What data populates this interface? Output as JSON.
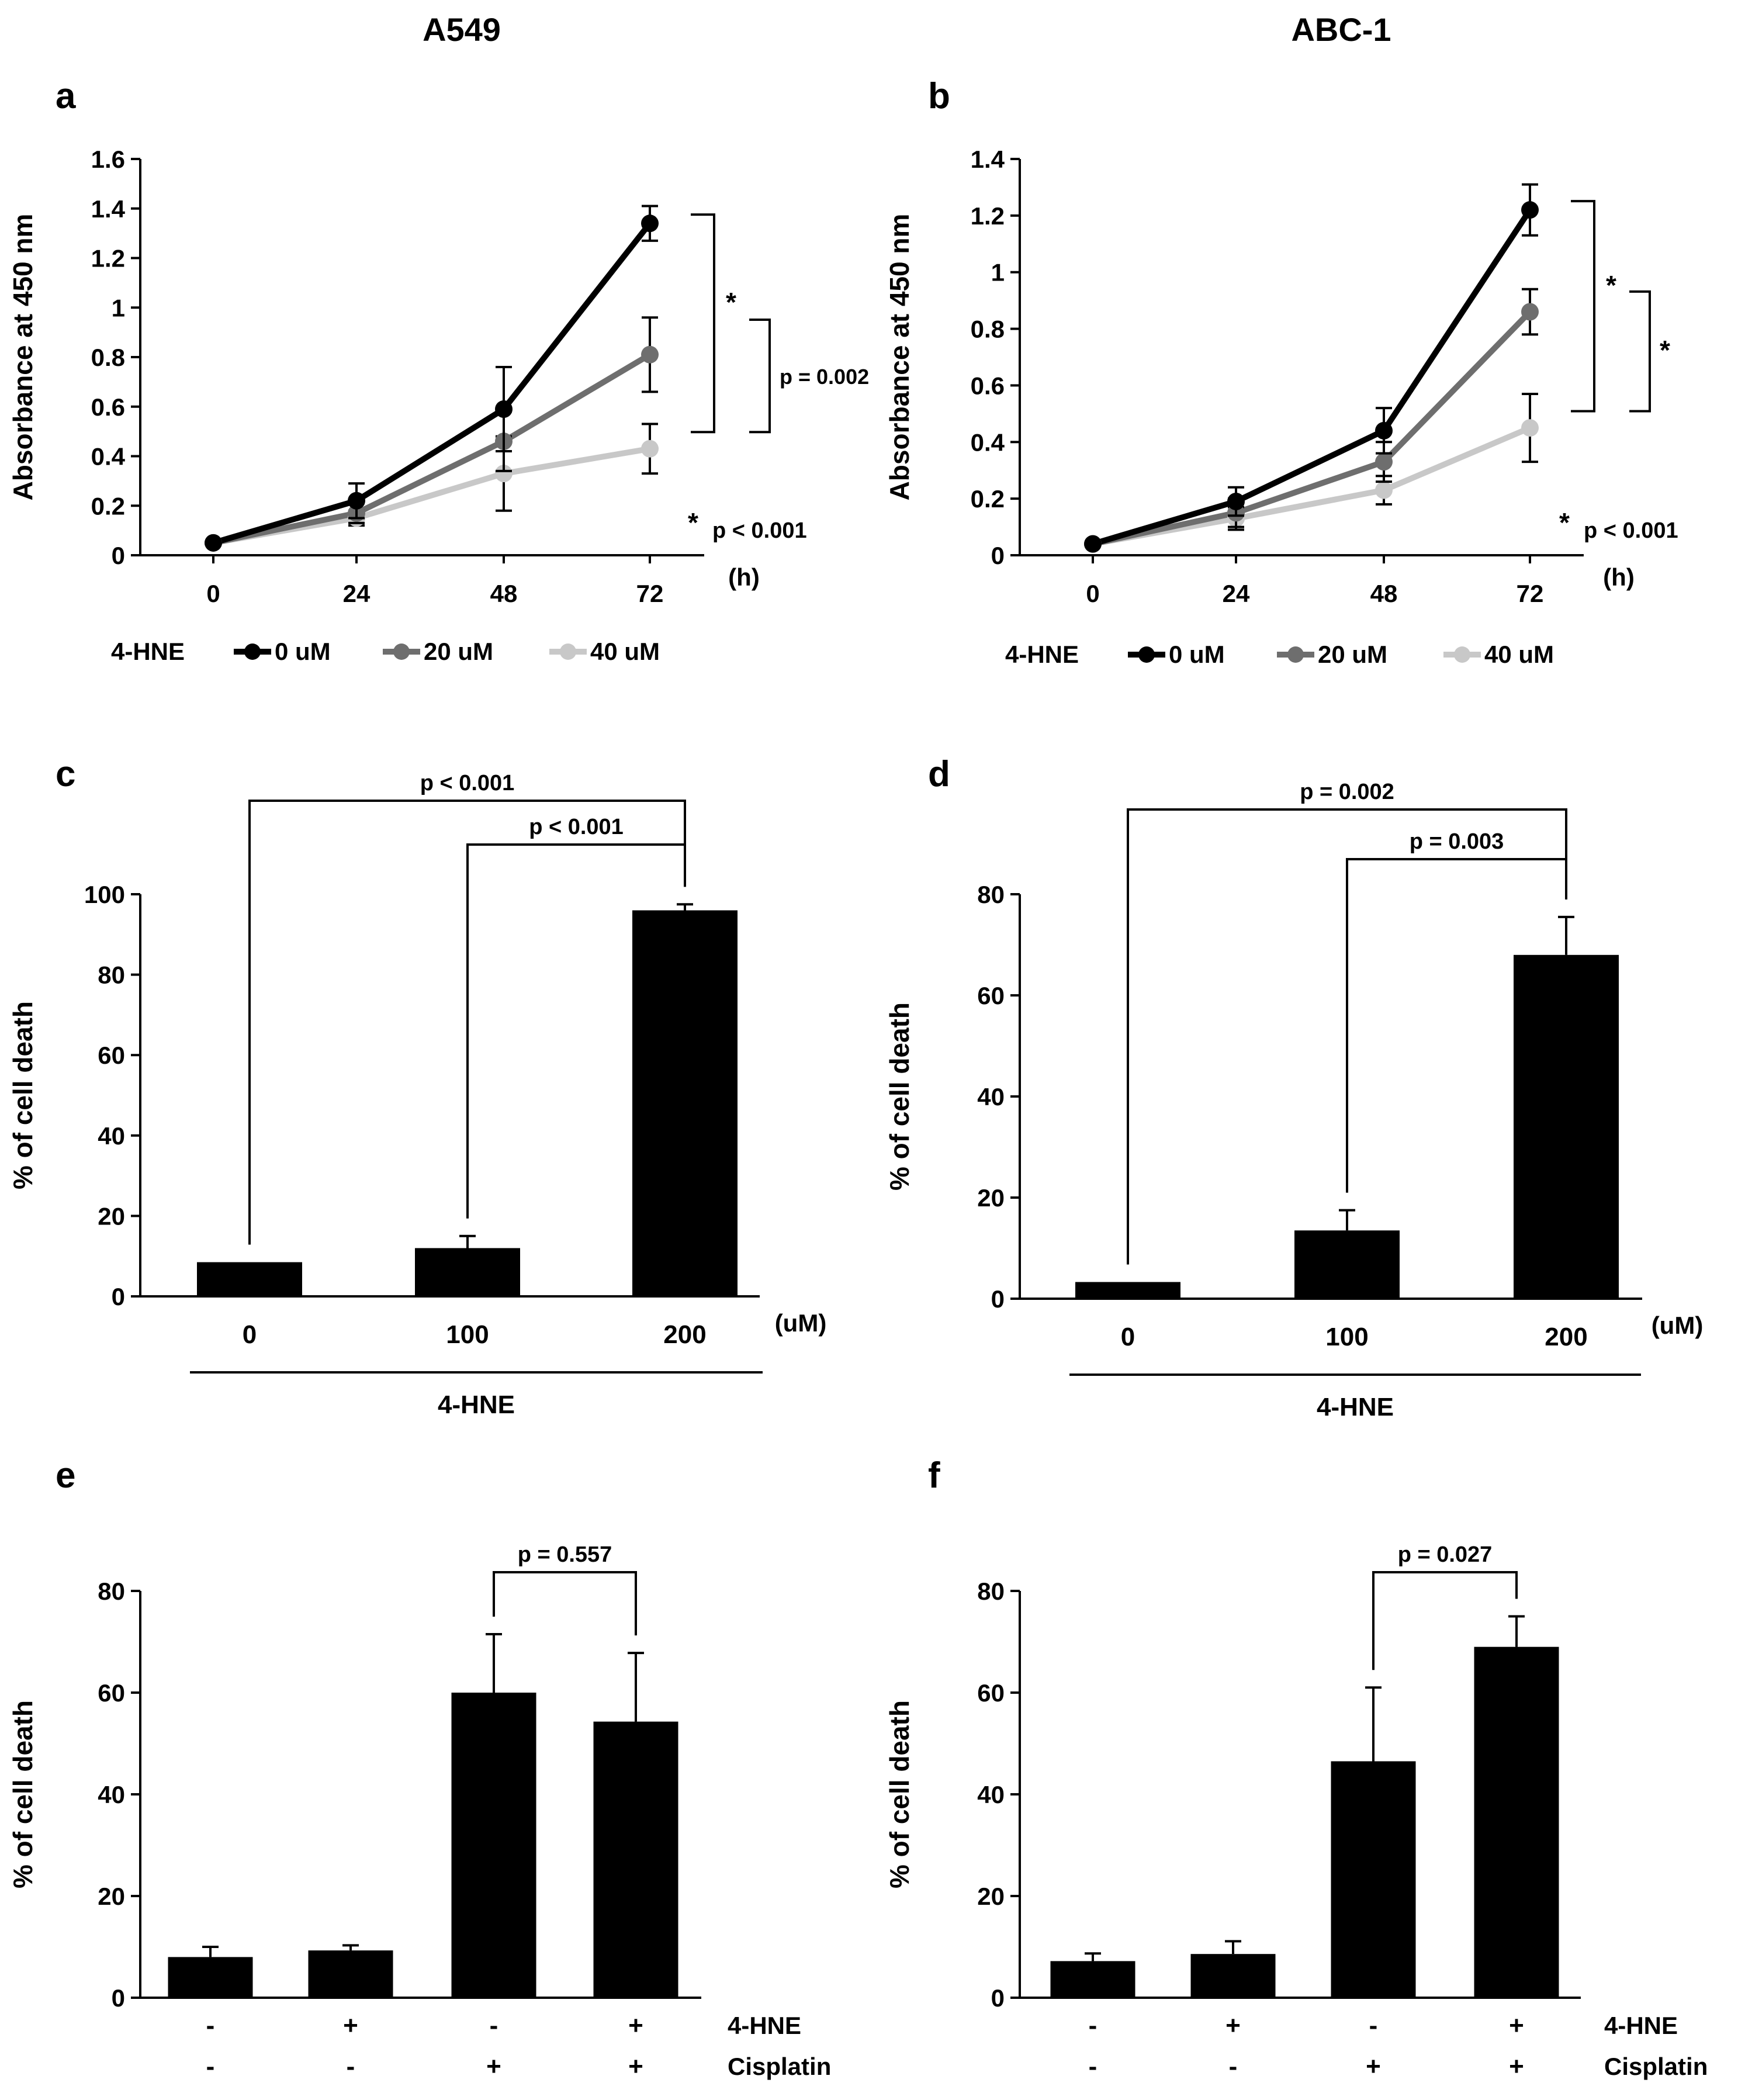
{
  "columns": [
    "A549",
    "ABC-1"
  ],
  "colors": {
    "black": "#000000",
    "s0": "#000000",
    "s20": "#6e6e6e",
    "s40": "#c8c8c8"
  },
  "chart_data": [
    {
      "id": "a",
      "panel_label": "a",
      "column": "A549",
      "type": "line",
      "ylabel": "Absorbance at 450 nm",
      "x_unit": "(h)",
      "x": [
        0,
        24,
        48,
        72
      ],
      "ylim": [
        0,
        1.6
      ],
      "yticks": [
        0,
        0.2,
        0.4,
        0.6,
        0.8,
        1,
        1.2,
        1.4,
        1.6
      ],
      "legend": {
        "title": "4-HNE",
        "placement": "bottom"
      },
      "series": [
        {
          "name": "0 uM",
          "values": [
            0.05,
            0.22,
            0.59,
            1.34
          ],
          "err": [
            0,
            0.07,
            0.17,
            0.07
          ]
        },
        {
          "name": "20 uM",
          "values": [
            0.05,
            0.17,
            0.46,
            0.81
          ],
          "err": [
            0,
            0.04,
            0.12,
            0.15
          ]
        },
        {
          "name": "40 uM",
          "values": [
            0.05,
            0.15,
            0.33,
            0.43
          ],
          "err": [
            0,
            0.03,
            0.15,
            0.1
          ]
        }
      ],
      "annotations": {
        "outer_star": "*",
        "inner_label": "p = 0.002",
        "footnote_star": "*",
        "footnote_label": "p < 0.001"
      }
    },
    {
      "id": "b",
      "panel_label": "b",
      "column": "ABC-1",
      "type": "line",
      "ylabel": "Absorbance at 450 nm",
      "x_unit": "(h)",
      "x": [
        0,
        24,
        48,
        72
      ],
      "ylim": [
        0,
        1.4
      ],
      "yticks": [
        0,
        0.2,
        0.4,
        0.6,
        0.8,
        1,
        1.2,
        1.4
      ],
      "legend": {
        "title": "4-HNE",
        "placement": "bottom"
      },
      "series": [
        {
          "name": "0 uM",
          "values": [
            0.04,
            0.19,
            0.44,
            1.22
          ],
          "err": [
            0,
            0.05,
            0.08,
            0.09
          ]
        },
        {
          "name": "20 uM",
          "values": [
            0.04,
            0.15,
            0.33,
            0.86
          ],
          "err": [
            0,
            0.05,
            0.07,
            0.08
          ]
        },
        {
          "name": "40 uM",
          "values": [
            0.04,
            0.13,
            0.23,
            0.45
          ],
          "err": [
            0,
            0.04,
            0.05,
            0.12
          ]
        }
      ],
      "annotations": {
        "outer_star": "*",
        "inner_label": "*",
        "footnote_star": "*",
        "footnote_label": "p < 0.001"
      }
    },
    {
      "id": "c",
      "panel_label": "c",
      "column": "A549",
      "type": "bar",
      "ylabel": "% of cell death",
      "x_unit": "(uM)",
      "group_label": "4-HNE",
      "categories": [
        "0",
        "100",
        "200"
      ],
      "values": [
        8.5,
        12,
        96
      ],
      "err": [
        0,
        3,
        1.5
      ],
      "ylim": [
        0,
        100
      ],
      "yticks": [
        0,
        20,
        40,
        60,
        80,
        100
      ],
      "comparisons": [
        {
          "from": 0,
          "to": 2,
          "label": "p < 0.001"
        },
        {
          "from": 1,
          "to": 2,
          "label": "p < 0.001"
        }
      ]
    },
    {
      "id": "d",
      "panel_label": "d",
      "column": "ABC-1",
      "type": "bar",
      "ylabel": "% of cell death",
      "x_unit": "(uM)",
      "group_label": "4-HNE",
      "categories": [
        "0",
        "100",
        "200"
      ],
      "values": [
        3.3,
        13.5,
        68
      ],
      "err": [
        0,
        4,
        7.5
      ],
      "ylim": [
        0,
        80
      ],
      "yticks": [
        0,
        20,
        40,
        60,
        80
      ],
      "comparisons": [
        {
          "from": 0,
          "to": 2,
          "label": "p = 0.002"
        },
        {
          "from": 1,
          "to": 2,
          "label": "p = 0.003"
        }
      ]
    },
    {
      "id": "e",
      "panel_label": "e",
      "column": "A549",
      "type": "bar",
      "ylabel": "% of cell death",
      "values": [
        8,
        9.3,
        60,
        54.3
      ],
      "err": [
        2,
        1,
        11.5,
        13.5
      ],
      "ylim": [
        0,
        80
      ],
      "yticks": [
        0,
        20,
        40,
        60,
        80
      ],
      "rows": [
        {
          "label": "4-HNE",
          "signs": [
            "-",
            "+",
            "-",
            "+"
          ]
        },
        {
          "label": "Cisplatin",
          "signs": [
            "-",
            "-",
            "+",
            "+"
          ]
        }
      ],
      "comparisons": [
        {
          "from": 2,
          "to": 3,
          "label": "p = 0.557"
        }
      ]
    },
    {
      "id": "f",
      "panel_label": "f",
      "column": "ABC-1",
      "type": "bar",
      "ylabel": "% of cell death",
      "values": [
        7.2,
        8.6,
        46.5,
        69
      ],
      "err": [
        1.5,
        2.5,
        14.5,
        6
      ],
      "ylim": [
        0,
        80
      ],
      "yticks": [
        0,
        20,
        40,
        60,
        80
      ],
      "rows": [
        {
          "label": "4-HNE",
          "signs": [
            "-",
            "+",
            "-",
            "+"
          ]
        },
        {
          "label": "Cisplatin",
          "signs": [
            "-",
            "-",
            "+",
            "+"
          ]
        }
      ],
      "comparisons": [
        {
          "from": 2,
          "to": 3,
          "label": "p = 0.027"
        }
      ]
    }
  ]
}
